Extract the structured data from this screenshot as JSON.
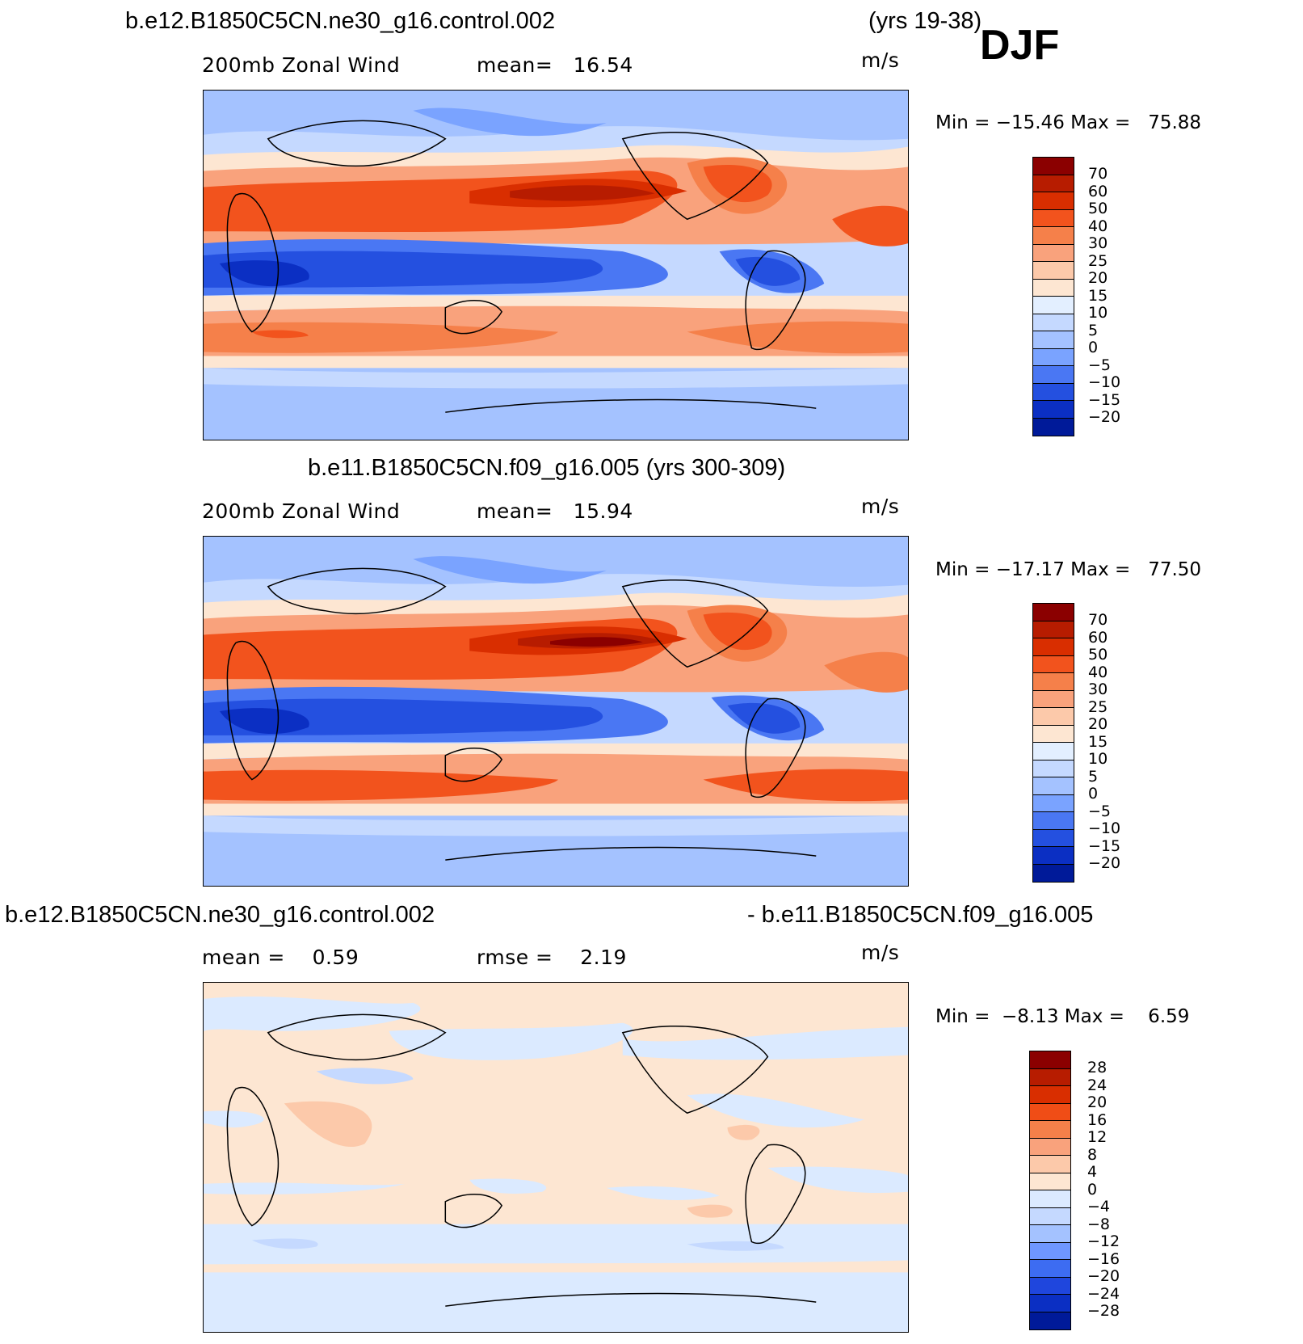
{
  "header": {
    "case1": "b.e12.B1850C5CN.ne30_g16.control.002",
    "years1": "(yrs 19-38)",
    "season": "DJF"
  },
  "panels": [
    {
      "variable": "200mb Zonal Wind",
      "stat1": "mean=   16.54",
      "units": "m/s",
      "minmax": "Min = −15.46 Max =   75.88",
      "colorbar": {
        "labels": [
          "70",
          "60",
          "50",
          "40",
          "30",
          "25",
          "20",
          "15",
          "10",
          "5",
          "0",
          "−5",
          "−10",
          "−15",
          "−20"
        ],
        "colors": [
          "#8b0000",
          "#b71c00",
          "#d92e00",
          "#f2531d",
          "#f5804a",
          "#f9a27c",
          "#fcc9aa",
          "#fde6d2",
          "#e3efff",
          "#c5d9ff",
          "#a4c2ff",
          "#7aa3ff",
          "#4a77f3",
          "#2450e0",
          "#0b2fc3",
          "#001a99"
        ]
      }
    },
    {
      "title": "b.e11.B1850C5CN.f09_g16.005 (yrs 300-309)",
      "variable": "200mb Zonal Wind",
      "stat1": "mean=   15.94",
      "units": "m/s",
      "minmax": "Min = −17.17 Max =   77.50",
      "colorbar": {
        "labels": [
          "70",
          "60",
          "50",
          "40",
          "30",
          "25",
          "20",
          "15",
          "10",
          "5",
          "0",
          "−5",
          "−10",
          "−15",
          "−20"
        ],
        "colors": [
          "#8b0000",
          "#b71c00",
          "#d92e00",
          "#f2531d",
          "#f5804a",
          "#f9a27c",
          "#fcc9aa",
          "#fde6d2",
          "#e3efff",
          "#c5d9ff",
          "#a4c2ff",
          "#7aa3ff",
          "#4a77f3",
          "#2450e0",
          "#0b2fc3",
          "#001a99"
        ]
      }
    },
    {
      "title_left": "b.e12.B1850C5CN.ne30_g16.control.002",
      "title_right": "- b.e11.B1850C5CN.f09_g16.005",
      "stat1": "mean =    0.59",
      "stat2": "rmse =    2.19",
      "units": "m/s",
      "minmax": "Min =  −8.13 Max =    6.59",
      "colorbar": {
        "labels": [
          "28",
          "24",
          "20",
          "16",
          "12",
          "8",
          "4",
          "0",
          "−4",
          "−8",
          "−12",
          "−16",
          "−20",
          "−24",
          "−28"
        ],
        "colors": [
          "#8b0000",
          "#b71c00",
          "#d92e00",
          "#f04d16",
          "#f5804a",
          "#f9a27c",
          "#fcc9aa",
          "#fde6d2",
          "#dbeaff",
          "#c5d9ff",
          "#a4c2ff",
          "#6f97ff",
          "#3d6cf2",
          "#1f46dd",
          "#0b2fc3",
          "#001a99"
        ]
      }
    }
  ]
}
